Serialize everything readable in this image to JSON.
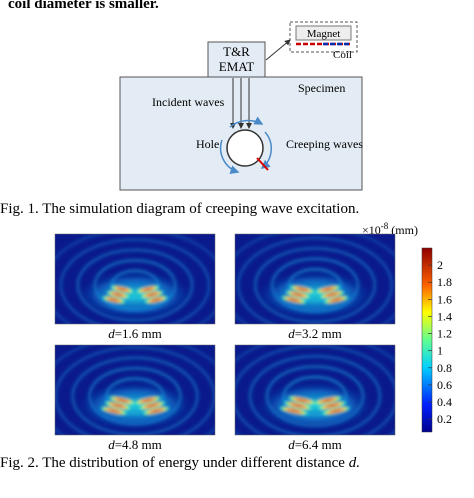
{
  "top_text": "coil diameter is smaller.",
  "figure1": {
    "emat": [
      "T&R",
      "EMAT"
    ],
    "magnet": "Magnet",
    "coil": "Coil",
    "specimen": "Specimen",
    "incident": "Incident waves",
    "hole": "Hole",
    "creeping": "Creeping waves",
    "caption": "Fig. 1. The simulation diagram of creeping wave excitation."
  },
  "figure2": {
    "panels": [
      {
        "symbol": "d",
        "value": "=1.6 mm"
      },
      {
        "symbol": "d",
        "value": "=3.2 mm"
      },
      {
        "symbol": "d",
        "value": "=4.8 mm"
      },
      {
        "symbol": "d",
        "value": "=6.4 mm"
      }
    ],
    "colorbar": {
      "exponent": "×10",
      "power": "-8",
      "unit": "(mm)",
      "lim": [
        0.05,
        2.2
      ],
      "ticks": [
        0.2,
        0.4,
        0.6,
        0.8,
        1,
        1.2,
        1.4,
        1.6,
        1.8,
        2
      ]
    },
    "caption": "Fig. 2. The distribution of energy under different distance",
    "caption_var": "d."
  }
}
